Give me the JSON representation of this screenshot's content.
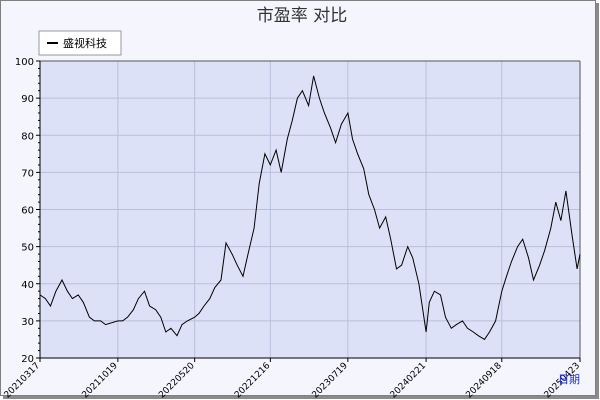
{
  "chart_data": {
    "type": "line",
    "title": "市盈率  对比",
    "xlabel": "日期",
    "ylabel": "",
    "ylim": [
      20,
      100
    ],
    "yticks": [
      20,
      30,
      40,
      50,
      60,
      70,
      80,
      90,
      100
    ],
    "xtick_labels": [
      "20210317",
      "20211019",
      "20220520",
      "20221216",
      "20230719",
      "20240221",
      "20240918",
      "20250423"
    ],
    "grid": true,
    "legend_position": "top-left",
    "colors": {
      "plot_bg": "#dde1f7",
      "frame_bg": "#f4f5fd",
      "grid": "#b9c0dc",
      "line": "#000000",
      "axis_label": "#1a2ad1"
    },
    "series": [
      {
        "name": "盛视科技",
        "x": [
          "20210317",
          "20210401",
          "20210415",
          "20210430",
          "20210517",
          "20210601",
          "20210615",
          "20210701",
          "20210715",
          "20210801",
          "20210815",
          "20210901",
          "20210915",
          "20211019",
          "20211101",
          "20211115",
          "20211201",
          "20211215",
          "20220101",
          "20220115",
          "20220201",
          "20220215",
          "20220301",
          "20220315",
          "20220401",
          "20220415",
          "20220430",
          "20220520",
          "20220601",
          "20220615",
          "20220701",
          "20220715",
          "20220801",
          "20220815",
          "20220901",
          "20220915",
          "20221001",
          "20221015",
          "20221101",
          "20221115",
          "20221201",
          "20221216",
          "20230101",
          "20230115",
          "20230201",
          "20230215",
          "20230301",
          "20230315",
          "20230401",
          "20230415",
          "20230501",
          "20230515",
          "20230601",
          "20230615",
          "20230701",
          "20230719",
          "20230801",
          "20230815",
          "20230901",
          "20230915",
          "20231001",
          "20231015",
          "20231101",
          "20231115",
          "20231201",
          "20231215",
          "20240101",
          "20240115",
          "20240201",
          "20240221",
          "20240301",
          "20240315",
          "20240401",
          "20240415",
          "20240501",
          "20240515",
          "20240601",
          "20240615",
          "20240701",
          "20240715",
          "20240801",
          "20240815",
          "20240901",
          "20240918",
          "20241001",
          "20241015",
          "20241101",
          "20241115",
          "20241201",
          "20241215",
          "20250101",
          "20250115",
          "20250201",
          "20250215",
          "20250301",
          "20250315",
          "20250401",
          "20250415",
          "20250423"
        ],
        "values": [
          37,
          36,
          34,
          38,
          41,
          38,
          36,
          37,
          35,
          31,
          30,
          30,
          29,
          30,
          30,
          31,
          33,
          36,
          38,
          34,
          33,
          31,
          27,
          28,
          26,
          29,
          30,
          31,
          32,
          34,
          36,
          39,
          41,
          51,
          48,
          45,
          42,
          48,
          55,
          67,
          75,
          72,
          76,
          70,
          79,
          84,
          90,
          92,
          88,
          96,
          90,
          86,
          82,
          78,
          83,
          86,
          79,
          75,
          71,
          64,
          60,
          55,
          58,
          52,
          44,
          45,
          50,
          47,
          40,
          27,
          35,
          38,
          37,
          31,
          28,
          29,
          30,
          28,
          27,
          26,
          25,
          27,
          30,
          38,
          42,
          46,
          50,
          52,
          47,
          41,
          45,
          49,
          55,
          62,
          57,
          65,
          53,
          44,
          48
        ]
      }
    ]
  }
}
